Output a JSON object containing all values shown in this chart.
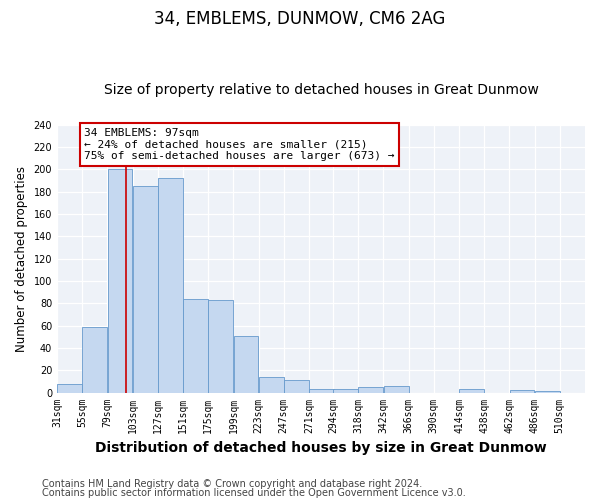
{
  "title": "34, EMBLEMS, DUNMOW, CM6 2AG",
  "subtitle": "Size of property relative to detached houses in Great Dunmow",
  "xlabel": "Distribution of detached houses by size in Great Dunmow",
  "ylabel": "Number of detached properties",
  "bar_left_edges": [
    31,
    55,
    79,
    103,
    127,
    151,
    175,
    199,
    223,
    247,
    271,
    294,
    318,
    342,
    366,
    390,
    414,
    438,
    462,
    486
  ],
  "bar_heights": [
    8,
    59,
    200,
    185,
    192,
    84,
    83,
    51,
    14,
    11,
    3,
    3,
    5,
    6,
    0,
    0,
    3,
    0,
    2,
    1
  ],
  "bin_width": 24,
  "bar_color": "#c5d8f0",
  "bar_edge_color": "#6699cc",
  "property_line_x": 97,
  "ylim": [
    0,
    240
  ],
  "yticks": [
    0,
    20,
    40,
    60,
    80,
    100,
    120,
    140,
    160,
    180,
    200,
    220,
    240
  ],
  "x_tick_labels": [
    "31sqm",
    "55sqm",
    "79sqm",
    "103sqm",
    "127sqm",
    "151sqm",
    "175sqm",
    "199sqm",
    "223sqm",
    "247sqm",
    "271sqm",
    "294sqm",
    "318sqm",
    "342sqm",
    "366sqm",
    "390sqm",
    "414sqm",
    "438sqm",
    "462sqm",
    "486sqm",
    "510sqm"
  ],
  "annotation_title": "34 EMBLEMS: 97sqm",
  "annotation_line1": "← 24% of detached houses are smaller (215)",
  "annotation_line2": "75% of semi-detached houses are larger (673) →",
  "annotation_box_facecolor": "#ffffff",
  "annotation_box_edgecolor": "#cc0000",
  "footer_line1": "Contains HM Land Registry data © Crown copyright and database right 2024.",
  "footer_line2": "Contains public sector information licensed under the Open Government Licence v3.0.",
  "background_color": "#ffffff",
  "plot_bg_color": "#eef2f8",
  "grid_color": "#ffffff",
  "title_fontsize": 12,
  "subtitle_fontsize": 10,
  "xlabel_fontsize": 10,
  "ylabel_fontsize": 8.5,
  "tick_fontsize": 7,
  "annotation_fontsize": 8,
  "footer_fontsize": 7
}
